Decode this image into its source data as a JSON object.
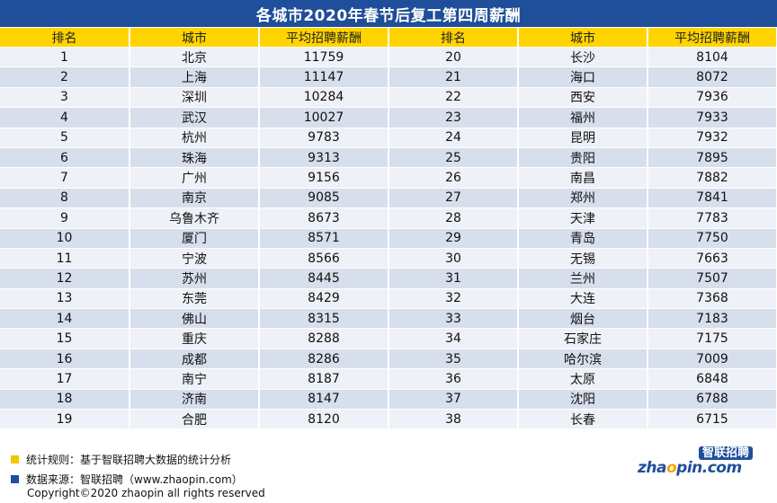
{
  "title": "各城市2020年春节后复工第四周薪酬",
  "headers": [
    "排名",
    "城市",
    "平均招聘薪酬",
    "排名",
    "城市",
    "平均招聘薪酬"
  ],
  "rows": [
    {
      "rank_l": "1",
      "city_l": "北京",
      "salary_l": "11759",
      "rank_r": "20",
      "city_r": "长沙",
      "salary_r": "8104"
    },
    {
      "rank_l": "2",
      "city_l": "上海",
      "salary_l": "11147",
      "rank_r": "21",
      "city_r": "海口",
      "salary_r": "8072"
    },
    {
      "rank_l": "3",
      "city_l": "深圳",
      "salary_l": "10284",
      "rank_r": "22",
      "city_r": "西安",
      "salary_r": "7936"
    },
    {
      "rank_l": "4",
      "city_l": "武汉",
      "salary_l": "10027",
      "rank_r": "23",
      "city_r": "福州",
      "salary_r": "7933"
    },
    {
      "rank_l": "5",
      "city_l": "杭州",
      "salary_l": "9783",
      "rank_r": "24",
      "city_r": "昆明",
      "salary_r": "7932"
    },
    {
      "rank_l": "6",
      "city_l": "珠海",
      "salary_l": "9313",
      "rank_r": "25",
      "city_r": "贵阳",
      "salary_r": "7895"
    },
    {
      "rank_l": "7",
      "city_l": "广州",
      "salary_l": "9156",
      "rank_r": "26",
      "city_r": "南昌",
      "salary_r": "7882"
    },
    {
      "rank_l": "8",
      "city_l": "南京",
      "salary_l": "9085",
      "rank_r": "27",
      "city_r": "郑州",
      "salary_r": "7841"
    },
    {
      "rank_l": "9",
      "city_l": "乌鲁木齐",
      "salary_l": "8673",
      "rank_r": "28",
      "city_r": "天津",
      "salary_r": "7783"
    },
    {
      "rank_l": "10",
      "city_l": "厦门",
      "salary_l": "8571",
      "rank_r": "29",
      "city_r": "青岛",
      "salary_r": "7750"
    },
    {
      "rank_l": "11",
      "city_l": "宁波",
      "salary_l": "8566",
      "rank_r": "30",
      "city_r": "无锡",
      "salary_r": "7663"
    },
    {
      "rank_l": "12",
      "city_l": "苏州",
      "salary_l": "8445",
      "rank_r": "31",
      "city_r": "兰州",
      "salary_r": "7507"
    },
    {
      "rank_l": "13",
      "city_l": "东莞",
      "salary_l": "8429",
      "rank_r": "32",
      "city_r": "大连",
      "salary_r": "7368"
    },
    {
      "rank_l": "14",
      "city_l": "佛山",
      "salary_l": "8315",
      "rank_r": "33",
      "city_r": "烟台",
      "salary_r": "7183"
    },
    {
      "rank_l": "15",
      "city_l": "重庆",
      "salary_l": "8288",
      "rank_r": "34",
      "city_r": "石家庄",
      "salary_r": "7175"
    },
    {
      "rank_l": "16",
      "city_l": "成都",
      "salary_l": "8286",
      "rank_r": "35",
      "city_r": "哈尔滨",
      "salary_r": "7009"
    },
    {
      "rank_l": "17",
      "city_l": "南宁",
      "salary_l": "8187",
      "rank_r": "36",
      "city_r": "太原",
      "salary_r": "6848"
    },
    {
      "rank_l": "18",
      "city_l": "济南",
      "salary_l": "8147",
      "rank_r": "37",
      "city_r": "沈阳",
      "salary_r": "6788"
    },
    {
      "rank_l": "19",
      "city_l": "合肥",
      "salary_l": "8120",
      "rank_r": "38",
      "city_r": "长春",
      "salary_r": "6715"
    }
  ],
  "notes": {
    "rule": "统计规则：基于智联招聘大数据的统计分析",
    "source": "数据来源：智联招聘（www.zhaopin.com）"
  },
  "copyright": "Copyright©2020 zhaopin all rights reserved",
  "logo": {
    "cn": "智联招聘",
    "en_pre": "zha",
    "en_o": "o",
    "en_post": "pin.com"
  },
  "colors": {
    "title_bg": "#1f4e9a",
    "header_bg": "#ffd400",
    "row_light": "#eef1f7",
    "row_dark": "#d7deec",
    "note_yellow": "#f5c400",
    "note_blue": "#1f4e9a"
  }
}
